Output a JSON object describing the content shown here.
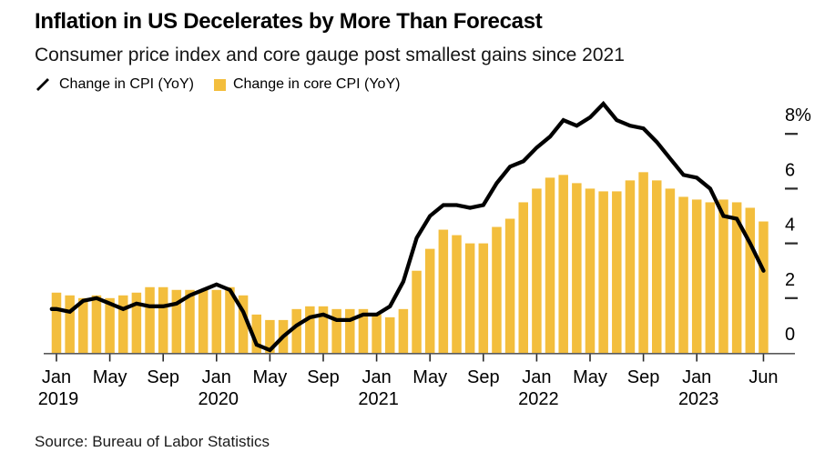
{
  "header": {
    "title": "Inflation in US Decelerates by More Than Forecast",
    "subtitle": "Consumer price index and core gauge post smallest gains since 2021"
  },
  "legend": {
    "items": [
      {
        "label": "Change in CPI (YoY)",
        "marker": "line",
        "color": "#000000"
      },
      {
        "label": "Change in core CPI (YoY)",
        "marker": "square",
        "color": "#F3BE3D"
      }
    ]
  },
  "footer": {
    "source": "Source: Bureau of Labor Statistics"
  },
  "chart_data": {
    "type": "bar",
    "subtype": "bar-and-line combo, monthly YoY percent",
    "title": "Inflation in US Decelerates by More Than Forecast",
    "subtitle": "Consumer price index and core gauge post smallest gains since 2021",
    "unit": "%",
    "grid": false,
    "legend_position": "top-left",
    "y_axis_side": "right",
    "ylim": [
      0,
      9.3
    ],
    "y_ticks": [
      {
        "value": 8,
        "label": "8%"
      },
      {
        "value": 6,
        "label": "6"
      },
      {
        "value": 4,
        "label": "4"
      },
      {
        "value": 2,
        "label": "2"
      },
      {
        "value": 0,
        "label": "0"
      }
    ],
    "x": [
      "Jan 2019",
      "Feb 2019",
      "Mar 2019",
      "Apr 2019",
      "May 2019",
      "Jun 2019",
      "Jul 2019",
      "Aug 2019",
      "Sep 2019",
      "Oct 2019",
      "Nov 2019",
      "Dec 2019",
      "Jan 2020",
      "Feb 2020",
      "Mar 2020",
      "Apr 2020",
      "May 2020",
      "Jun 2020",
      "Jul 2020",
      "Aug 2020",
      "Sep 2020",
      "Oct 2020",
      "Nov 2020",
      "Dec 2020",
      "Jan 2021",
      "Feb 2021",
      "Mar 2021",
      "Apr 2021",
      "May 2021",
      "Jun 2021",
      "Jul 2021",
      "Aug 2021",
      "Sep 2021",
      "Oct 2021",
      "Nov 2021",
      "Dec 2021",
      "Jan 2022",
      "Feb 2022",
      "Mar 2022",
      "Apr 2022",
      "May 2022",
      "Jun 2022",
      "Jul 2022",
      "Aug 2022",
      "Sep 2022",
      "Oct 2022",
      "Nov 2022",
      "Dec 2022",
      "Jan 2023",
      "Feb 2023",
      "Mar 2023",
      "Apr 2023",
      "May 2023",
      "Jun 2023"
    ],
    "x_ticks": [
      {
        "index": 0,
        "label": "Jan",
        "year": "2019"
      },
      {
        "index": 4,
        "label": "May"
      },
      {
        "index": 8,
        "label": "Sep"
      },
      {
        "index": 12,
        "label": "Jan",
        "year": "2020"
      },
      {
        "index": 16,
        "label": "May"
      },
      {
        "index": 20,
        "label": "Sep"
      },
      {
        "index": 24,
        "label": "Jan",
        "year": "2021"
      },
      {
        "index": 28,
        "label": "May"
      },
      {
        "index": 32,
        "label": "Sep"
      },
      {
        "index": 36,
        "label": "Jan",
        "year": "2022"
      },
      {
        "index": 40,
        "label": "May"
      },
      {
        "index": 44,
        "label": "Sep"
      },
      {
        "index": 48,
        "label": "Jan",
        "year": "2023"
      },
      {
        "index": 53,
        "label": "Jun"
      }
    ],
    "series": [
      {
        "name": "Change in CPI (YoY)",
        "type": "line",
        "color": "#000000",
        "values": [
          1.6,
          1.5,
          1.9,
          2.0,
          1.8,
          1.6,
          1.8,
          1.7,
          1.7,
          1.8,
          2.1,
          2.3,
          2.5,
          2.3,
          1.5,
          0.3,
          0.1,
          0.6,
          1.0,
          1.3,
          1.4,
          1.2,
          1.2,
          1.4,
          1.4,
          1.7,
          2.6,
          4.2,
          5.0,
          5.4,
          5.4,
          5.3,
          5.4,
          6.2,
          6.8,
          7.0,
          7.5,
          7.9,
          8.5,
          8.3,
          8.6,
          9.1,
          8.5,
          8.3,
          8.2,
          7.7,
          7.1,
          6.5,
          6.4,
          6.0,
          5.0,
          4.9,
          4.0,
          3.0
        ]
      },
      {
        "name": "Change in core CPI (YoY)",
        "type": "bar",
        "color": "#F3BE3D",
        "values": [
          2.2,
          2.1,
          2.0,
          2.1,
          2.0,
          2.1,
          2.2,
          2.4,
          2.4,
          2.3,
          2.3,
          2.3,
          2.3,
          2.4,
          2.1,
          1.4,
          1.2,
          1.2,
          1.6,
          1.7,
          1.7,
          1.6,
          1.6,
          1.6,
          1.4,
          1.3,
          1.6,
          3.0,
          3.8,
          4.5,
          4.3,
          4.0,
          4.0,
          4.6,
          4.9,
          5.5,
          6.0,
          6.4,
          6.5,
          6.2,
          6.0,
          5.9,
          5.9,
          6.3,
          6.6,
          6.3,
          6.0,
          5.7,
          5.6,
          5.5,
          5.6,
          5.5,
          5.3,
          4.8
        ]
      }
    ],
    "colors": {
      "axis_line": "#5a5a5a",
      "tick_mark": "#2a2a2a",
      "tick_label": "#000000"
    }
  }
}
